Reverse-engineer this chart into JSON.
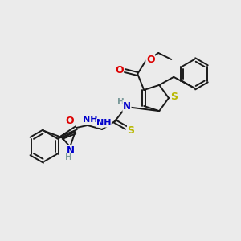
{
  "bg_color": "#ebebeb",
  "bond_color": "#1a1a1a",
  "bond_width": 1.4,
  "atom_colors": {
    "S": "#b8b800",
    "N": "#0000cc",
    "O": "#dd0000",
    "H": "#7a9a9a",
    "C": "#1a1a1a"
  },
  "fig_width": 3.0,
  "fig_height": 3.0,
  "dpi": 100
}
